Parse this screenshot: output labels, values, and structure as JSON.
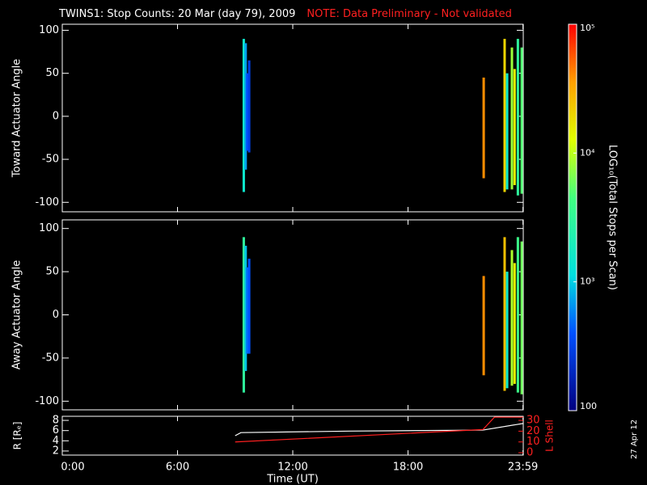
{
  "chart_data": [
    {
      "type": "stripes",
      "title": "TWINS1: Stop Counts: 20 Mar (day  79), 2009",
      "note": "NOTE: Data Preliminary - Not validated",
      "y_label": "Toward Actuator Angle",
      "xlim": [
        0,
        24
      ],
      "ylim": [
        -111,
        107
      ],
      "yticks": [
        -100,
        -50,
        0,
        50,
        100
      ],
      "segments": [
        {
          "x": 9.45,
          "y": [
            -88,
            90
          ],
          "value": 1500
        },
        {
          "x": 9.55,
          "y": [
            -62,
            85
          ],
          "value": 700
        },
        {
          "x": 9.63,
          "y": [
            -40,
            50
          ],
          "value": 400
        },
        {
          "x": 9.73,
          "y": [
            -42,
            65
          ],
          "value": 300
        },
        {
          "x": 21.94,
          "y": [
            -72,
            45
          ],
          "value": 40000
        },
        {
          "x": 23.03,
          "y": [
            -88,
            90
          ],
          "value": 20000
        },
        {
          "x": 23.16,
          "y": [
            -85,
            50
          ],
          "value": 1500
        },
        {
          "x": 23.41,
          "y": [
            -85,
            80
          ],
          "value": 8000
        },
        {
          "x": 23.55,
          "y": [
            -80,
            55
          ],
          "value": 15000
        },
        {
          "x": 23.72,
          "y": [
            -92,
            90
          ],
          "value": 3000
        },
        {
          "x": 23.92,
          "y": [
            -90,
            80
          ],
          "value": 5000
        }
      ]
    },
    {
      "type": "stripes",
      "y_label": "Away Actuator Angle",
      "xlim": [
        0,
        24
      ],
      "ylim": [
        -110,
        110
      ],
      "yticks": [
        -100,
        -50,
        0,
        50,
        100
      ],
      "segments": [
        {
          "x": 9.45,
          "y": [
            -90,
            90
          ],
          "value": 3000
        },
        {
          "x": 9.55,
          "y": [
            -65,
            80
          ],
          "value": 900
        },
        {
          "x": 9.63,
          "y": [
            -45,
            55
          ],
          "value": 500
        },
        {
          "x": 9.73,
          "y": [
            -45,
            65
          ],
          "value": 400
        },
        {
          "x": 21.94,
          "y": [
            -70,
            45
          ],
          "value": 40000
        },
        {
          "x": 23.03,
          "y": [
            -88,
            90
          ],
          "value": 25000
        },
        {
          "x": 23.16,
          "y": [
            -85,
            50
          ],
          "value": 1500
        },
        {
          "x": 23.41,
          "y": [
            -82,
            75
          ],
          "value": 9000
        },
        {
          "x": 23.55,
          "y": [
            -80,
            60
          ],
          "value": 15000
        },
        {
          "x": 23.72,
          "y": [
            -90,
            90
          ],
          "value": 4000
        },
        {
          "x": 23.92,
          "y": [
            -92,
            85
          ],
          "value": 6000
        }
      ]
    },
    {
      "type": "line",
      "x_label": "Time (UT)",
      "xlim": [
        0,
        24
      ],
      "xticks": [
        {
          "value": 0,
          "label": "0:00"
        },
        {
          "value": 6,
          "label": "6:00"
        },
        {
          "value": 12,
          "label": "12:00"
        },
        {
          "value": 18,
          "label": "18:00"
        },
        {
          "value": 23.983,
          "label": "23:59"
        }
      ],
      "y_label": "R [Rₑ]",
      "ylim": [
        1.2,
        8.8
      ],
      "yticks": [
        2,
        4,
        6,
        8
      ],
      "y2_label": "L Shell",
      "y2lim": [
        -2.2,
        33.8
      ],
      "y2ticks": [
        0,
        10,
        20,
        30
      ],
      "series": [
        {
          "color": "#ffffff",
          "x": [
            9.0,
            9.3,
            15,
            21.9,
            24
          ],
          "values": [
            5.0,
            5.6,
            5.9,
            6.1,
            7.4
          ]
        },
        {
          "color": "#ff2020",
          "axis": "y2",
          "x": [
            9.0,
            21.9,
            22.5,
            24
          ],
          "values": [
            10,
            21.5,
            33,
            33
          ]
        }
      ]
    }
  ],
  "colorbar": {
    "label": "LOG₁₀(Total Stops per Scan)",
    "clim": [
      100,
      100000
    ],
    "log": true,
    "ticks": [
      {
        "value": 100,
        "label": "100"
      },
      {
        "value": 1000,
        "label": "10³"
      },
      {
        "value": 10000,
        "label": "10⁴"
      },
      {
        "value": 100000,
        "label": "10⁵"
      }
    ]
  },
  "date_stamp": "27 Apr 12"
}
